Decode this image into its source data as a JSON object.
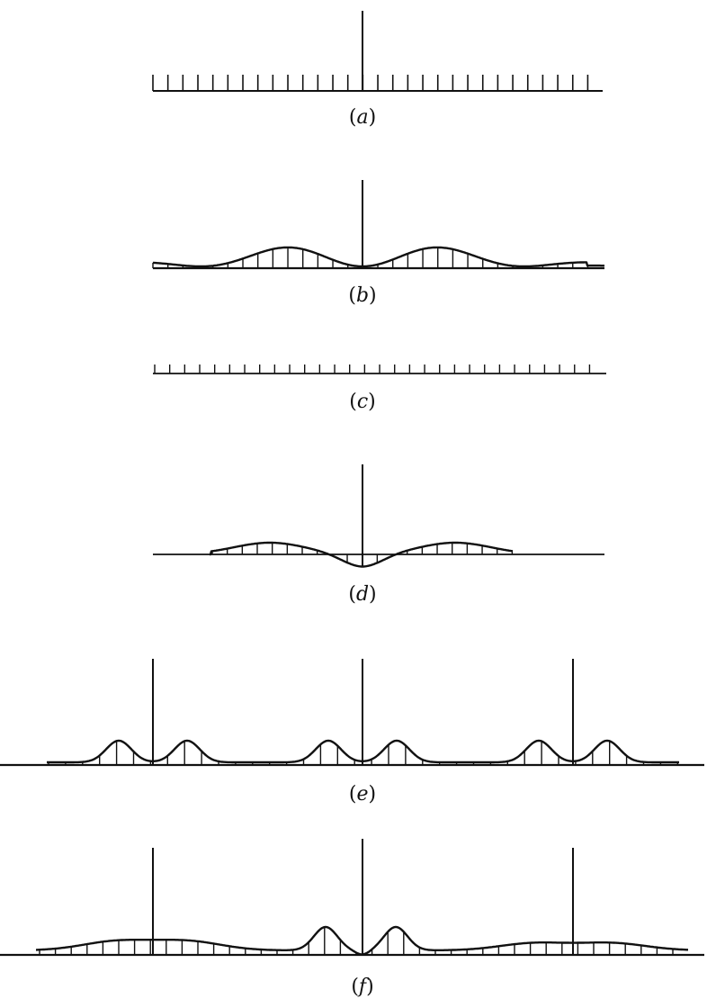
{
  "colors": {
    "ink": "#111111",
    "background": "#ffffff"
  },
  "panels": [
    {
      "id": "a",
      "label_open": "(",
      "label_letter": "a",
      "label_close": ")"
    },
    {
      "id": "b",
      "label_open": "(",
      "label_letter": "b",
      "label_close": ")"
    },
    {
      "id": "c",
      "label_open": "(",
      "label_letter": "c",
      "label_close": ")"
    },
    {
      "id": "d",
      "label_open": "(",
      "label_letter": "d",
      "label_close": ")"
    },
    {
      "id": "e",
      "label_open": "(",
      "label_letter": "e",
      "label_close": ")"
    },
    {
      "id": "f",
      "label_open": "(",
      "label_letter": "f",
      "label_close": ")"
    }
  ]
}
